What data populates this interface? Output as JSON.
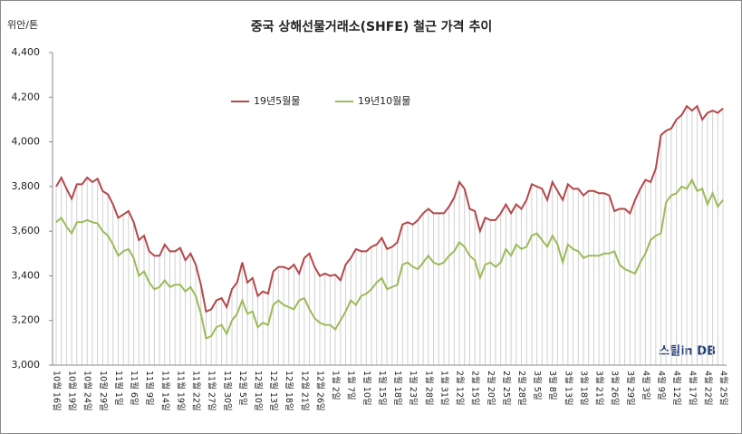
{
  "chart_data": {
    "type": "line",
    "title": "중국 상해선물거래소(SHFE)  철근 가격 추이",
    "y_axis_label": "위안/톤",
    "logo": "스틸in DB",
    "categories": [
      "10월 16일",
      null,
      null,
      "10월 19일",
      null,
      null,
      "10월 24일",
      null,
      null,
      "10월 29일",
      null,
      null,
      "11월 1일",
      null,
      null,
      "11월 6일",
      null,
      null,
      "11월 9일",
      null,
      null,
      "11월 14일",
      null,
      null,
      "11월 19일",
      null,
      null,
      "11월 22일",
      null,
      null,
      "11월 27일",
      null,
      null,
      "11월 30일",
      null,
      null,
      "12월 5일",
      null,
      null,
      "12월 10일",
      null,
      null,
      "12월 13일",
      null,
      null,
      "12월 18일",
      null,
      null,
      "12월 21일",
      null,
      null,
      "12월 26일",
      null,
      null,
      "1월 2일",
      null,
      null,
      "1월 7일",
      null,
      null,
      "1월 10일",
      null,
      null,
      "1월 15일",
      null,
      null,
      "1월 18일",
      null,
      null,
      "1월 23일",
      null,
      null,
      "1월 28일",
      null,
      null,
      "1월 31일",
      null,
      null,
      "2월 12일",
      null,
      null,
      "2월 15일",
      null,
      null,
      "2월 20일",
      null,
      null,
      "2월 25일",
      null,
      null,
      "2월 28일",
      null,
      null,
      "3월 5일",
      null,
      null,
      "3월 8일",
      null,
      null,
      "3월 13일",
      null,
      null,
      "3월 18일",
      null,
      null,
      "3월 21일",
      null,
      null,
      "3월 26일",
      null,
      null,
      "3월 29일",
      null,
      null,
      "4월 3일",
      null,
      null,
      "4월 9일",
      null,
      null,
      "4월 12일",
      null,
      null,
      "4월 17일",
      null,
      null,
      "4월 22일",
      null,
      null,
      "4월 25일"
    ],
    "series": [
      {
        "name": "19년5월물",
        "color": "#b5474a",
        "values": [
          3800,
          3840,
          3790,
          3745,
          3810,
          3810,
          3840,
          3820,
          3835,
          3780,
          3765,
          3720,
          3660,
          3675,
          3690,
          3640,
          3560,
          3580,
          3510,
          3490,
          3490,
          3540,
          3510,
          3510,
          3525,
          3470,
          3500,
          3450,
          3360,
          3240,
          3250,
          3290,
          3300,
          3260,
          3340,
          3370,
          3460,
          3370,
          3390,
          3310,
          3330,
          3320,
          3420,
          3440,
          3440,
          3430,
          3450,
          3410,
          3480,
          3500,
          3440,
          3400,
          3410,
          3400,
          3405,
          3380,
          3450,
          3480,
          3520,
          3510,
          3510,
          3530,
          3540,
          3570,
          3520,
          3530,
          3550,
          3630,
          3640,
          3630,
          3650,
          3680,
          3700,
          3680,
          3680,
          3680,
          3710,
          3750,
          3820,
          3790,
          3700,
          3690,
          3600,
          3660,
          3650,
          3650,
          3680,
          3720,
          3680,
          3720,
          3700,
          3740,
          3810,
          3800,
          3790,
          3740,
          3820,
          3780,
          3740,
          3810,
          3790,
          3790,
          3760,
          3780,
          3780,
          3770,
          3770,
          3760,
          3690,
          3700,
          3700,
          3680,
          3740,
          3790,
          3830,
          3820,
          3880,
          4030,
          4050,
          4060,
          4100,
          4120,
          4160,
          4140,
          4160,
          4100,
          4130,
          4140,
          4130,
          4150
        ]
      },
      {
        "name": "19년10월물",
        "color": "#9bbb59",
        "values": [
          3640,
          3660,
          3620,
          3590,
          3640,
          3640,
          3650,
          3640,
          3635,
          3600,
          3580,
          3540,
          3490,
          3510,
          3520,
          3480,
          3400,
          3420,
          3370,
          3340,
          3350,
          3380,
          3350,
          3360,
          3360,
          3330,
          3350,
          3310,
          3230,
          3120,
          3130,
          3170,
          3180,
          3140,
          3200,
          3230,
          3290,
          3230,
          3240,
          3170,
          3190,
          3180,
          3270,
          3290,
          3270,
          3260,
          3250,
          3290,
          3300,
          3250,
          3210,
          3190,
          3180,
          3180,
          3160,
          3200,
          3240,
          3290,
          3270,
          3310,
          3320,
          3340,
          3370,
          3390,
          3340,
          3350,
          3360,
          3450,
          3460,
          3440,
          3430,
          3460,
          3490,
          3460,
          3450,
          3460,
          3490,
          3510,
          3550,
          3530,
          3490,
          3470,
          3390,
          3450,
          3460,
          3440,
          3460,
          3520,
          3490,
          3540,
          3520,
          3530,
          3580,
          3590,
          3560,
          3530,
          3580,
          3540,
          3460,
          3540,
          3520,
          3510,
          3480,
          3490,
          3490,
          3490,
          3500,
          3500,
          3510,
          3450,
          3430,
          3420,
          3410,
          3460,
          3500,
          3560,
          3580,
          3590,
          3730,
          3760,
          3770,
          3800,
          3790,
          3830,
          3780,
          3790,
          3720,
          3770,
          3710,
          3740
        ]
      }
    ],
    "ylim": [
      3000,
      4400
    ],
    "yticks": [
      {
        "value": 3000,
        "label": "3,000"
      },
      {
        "value": 3200,
        "label": "3,200"
      },
      {
        "value": 3400,
        "label": "3,400"
      },
      {
        "value": 3600,
        "label": "3,600"
      },
      {
        "value": 3800,
        "label": "3,800"
      },
      {
        "value": 4000,
        "label": "4,000"
      },
      {
        "value": 4200,
        "label": "4,200"
      },
      {
        "value": 4400,
        "label": "4,400"
      }
    ],
    "drop_lines": true
  }
}
